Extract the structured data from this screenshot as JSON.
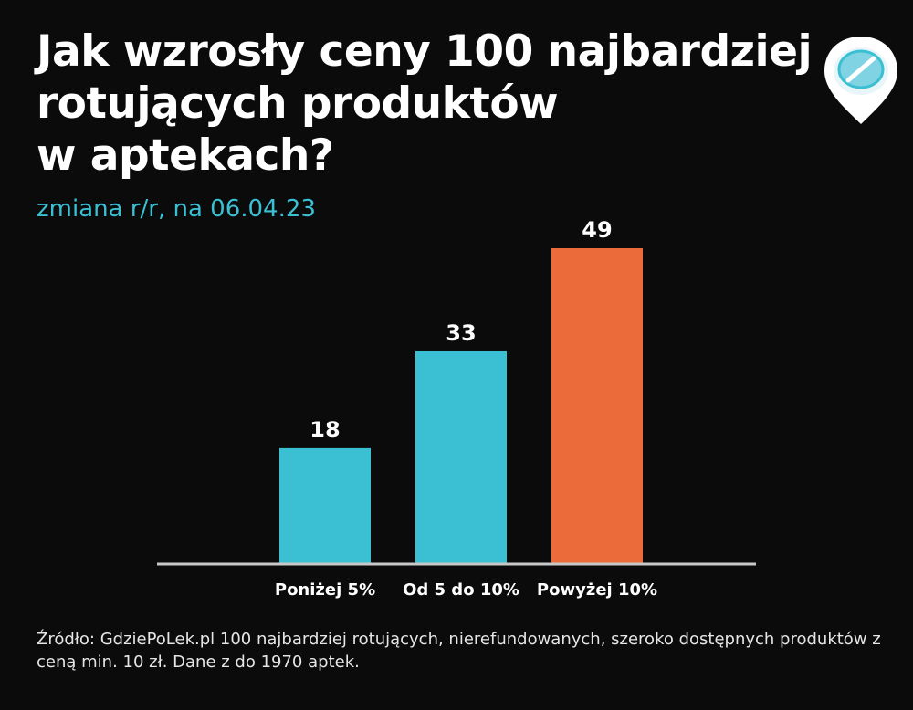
{
  "title_lines": [
    "Jak wzrosły ceny 100 najbardziej",
    "rotujących produktów",
    "w aptekach?"
  ],
  "subtitle": "zmiana r/r, na 06.04.23",
  "logo_icon": "pill-pin-icon",
  "source": "Źródło: GdziePoLek.pl 100 najbardziej rotujących, nierefundowanych, szeroko dostępnych produktów z ceną min. 10 zł. Dane z do 1970 aptek.",
  "colors": {
    "background": "#0b0b0b",
    "accent_blue": "#3bbfd3",
    "accent_orange": "#ec6b3b",
    "axis": "#c8c8c8"
  },
  "chart_data": {
    "type": "bar",
    "categories": [
      "Poniżej 5%",
      "Od 5 do 10%",
      "Powyżej 10%"
    ],
    "values": [
      18,
      33,
      49
    ],
    "bar_colors": [
      "#3bbfd3",
      "#3bbfd3",
      "#ec6b3b"
    ],
    "title": "Jak wzrosły ceny 100 najbardziej rotujących produktów w aptekach?",
    "subtitle": "zmiana r/r, na 06.04.23",
    "xlabel": "",
    "ylabel": "",
    "ylim": [
      0,
      49
    ],
    "data_labels": true,
    "grid": false,
    "legend": "none"
  }
}
